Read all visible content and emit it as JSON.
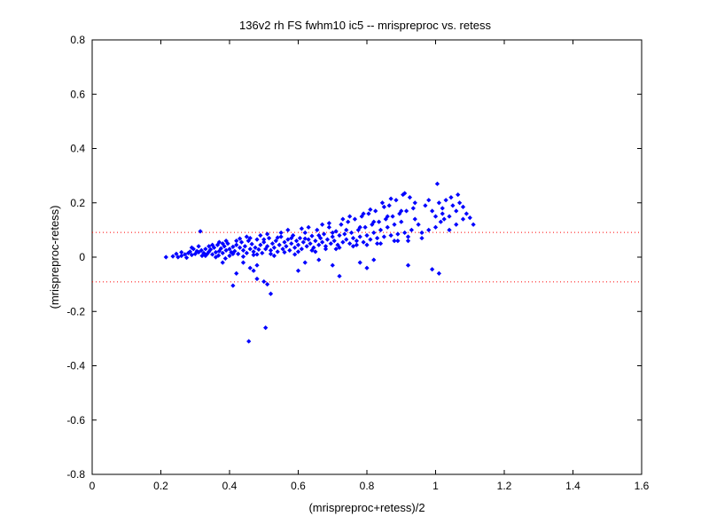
{
  "chart_data": {
    "type": "scatter",
    "title": "136v2 rh FS fwhm10 ic5 -- mrispreproc vs. retess",
    "xlabel": "(mrispreproc+retess)/2",
    "ylabel": "(mrispreproc-retess)",
    "xlim": [
      0,
      1.6
    ],
    "ylim": [
      -0.8,
      0.8
    ],
    "xticks": [
      "0",
      "0.2",
      "0.4",
      "0.6",
      "0.8",
      "1",
      "1.2",
      "1.4",
      "1.6"
    ],
    "yticks": [
      "-0.8",
      "-0.6",
      "-0.4",
      "-0.2",
      "0",
      "0.2",
      "0.4",
      "0.6",
      "0.8"
    ],
    "grid": false,
    "reference_lines": [
      {
        "y": 0.091,
        "style": "dotted",
        "color": "#ff0000"
      },
      {
        "y": -0.091,
        "style": "dotted",
        "color": "#ff0000"
      }
    ],
    "marker_color": "#0000ff",
    "series": [
      {
        "points": [
          [
            0.215,
            0.0
          ],
          [
            0.235,
            0.003
          ],
          [
            0.245,
            0.012
          ],
          [
            0.25,
            0.0
          ],
          [
            0.26,
            0.005
          ],
          [
            0.27,
            0.01
          ],
          [
            0.275,
            -0.002
          ],
          [
            0.28,
            0.015
          ],
          [
            0.285,
            0.02
          ],
          [
            0.29,
            0.008
          ],
          [
            0.295,
            0.03
          ],
          [
            0.3,
            0.012
          ],
          [
            0.305,
            0.022
          ],
          [
            0.31,
            0.018
          ],
          [
            0.315,
            0.095
          ],
          [
            0.318,
            0.025
          ],
          [
            0.32,
            0.005
          ],
          [
            0.325,
            0.015
          ],
          [
            0.33,
            0.03
          ],
          [
            0.335,
            0.012
          ],
          [
            0.34,
            0.02
          ],
          [
            0.345,
            0.028
          ],
          [
            0.35,
            0.01
          ],
          [
            0.355,
            0.035
          ],
          [
            0.36,
            0.018
          ],
          [
            0.365,
            0.045
          ],
          [
            0.368,
            0.006
          ],
          [
            0.37,
            0.022
          ],
          [
            0.375,
            0.032
          ],
          [
            0.38,
            0.015
          ],
          [
            0.385,
            0.04
          ],
          [
            0.388,
            -0.005
          ],
          [
            0.39,
            0.025
          ],
          [
            0.395,
            0.05
          ],
          [
            0.4,
            0.03
          ],
          [
            0.405,
            0.018
          ],
          [
            0.41,
            0.038
          ],
          [
            0.415,
            0.022
          ],
          [
            0.42,
            0.045
          ],
          [
            0.425,
            0.012
          ],
          [
            0.43,
            0.035
          ],
          [
            0.435,
            0.055
          ],
          [
            0.44,
            0.025
          ],
          [
            0.445,
            0.04
          ],
          [
            0.45,
            0.015
          ],
          [
            0.455,
            0.06
          ],
          [
            0.46,
            0.03
          ],
          [
            0.465,
            0.048
          ],
          [
            0.47,
            0.02
          ],
          [
            0.475,
            0.035
          ],
          [
            0.48,
            0.065
          ],
          [
            0.485,
            0.028
          ],
          [
            0.49,
            0.045
          ],
          [
            0.495,
            0.015
          ],
          [
            0.5,
            0.055
          ],
          [
            0.505,
            0.03
          ],
          [
            0.51,
            0.04
          ],
          [
            0.515,
            0.07
          ],
          [
            0.52,
            0.025
          ],
          [
            0.525,
            0.05
          ],
          [
            0.53,
            0.035
          ],
          [
            0.535,
            0.06
          ],
          [
            0.54,
            0.02
          ],
          [
            0.545,
            0.045
          ],
          [
            0.55,
            0.075
          ],
          [
            0.555,
            0.03
          ],
          [
            0.56,
            0.055
          ],
          [
            0.565,
            0.04
          ],
          [
            0.57,
            0.065
          ],
          [
            0.575,
            0.025
          ],
          [
            0.58,
            0.05
          ],
          [
            0.585,
            0.08
          ],
          [
            0.59,
            0.035
          ],
          [
            0.595,
            0.06
          ],
          [
            0.6,
            0.045
          ],
          [
            0.605,
            0.07
          ],
          [
            0.61,
            0.03
          ],
          [
            0.615,
            0.055
          ],
          [
            0.62,
            0.09
          ],
          [
            0.625,
            0.04
          ],
          [
            0.63,
            0.065
          ],
          [
            0.635,
            0.05
          ],
          [
            0.64,
            0.078
          ],
          [
            0.645,
            0.035
          ],
          [
            0.65,
            0.06
          ],
          [
            0.655,
            0.1
          ],
          [
            0.66,
            0.045
          ],
          [
            0.665,
            0.07
          ],
          [
            0.67,
            0.055
          ],
          [
            0.675,
            0.085
          ],
          [
            0.68,
            0.04
          ],
          [
            0.685,
            0.065
          ],
          [
            0.69,
            0.11
          ],
          [
            0.695,
            0.05
          ],
          [
            0.7,
            0.075
          ],
          [
            0.705,
            0.06
          ],
          [
            0.71,
            0.095
          ],
          [
            0.715,
            0.045
          ],
          [
            0.72,
            0.08
          ],
          [
            0.725,
            0.12
          ],
          [
            0.73,
            0.055
          ],
          [
            0.735,
            0.085
          ],
          [
            0.74,
            0.065
          ],
          [
            0.745,
            0.13
          ],
          [
            0.75,
            0.05
          ],
          [
            0.755,
            0.09
          ],
          [
            0.76,
            0.07
          ],
          [
            0.765,
            0.14
          ],
          [
            0.77,
            0.06
          ],
          [
            0.775,
            0.1
          ],
          [
            0.78,
            0.075
          ],
          [
            0.785,
            0.15
          ],
          [
            0.79,
            0.055
          ],
          [
            0.795,
            0.11
          ],
          [
            0.8,
            0.08
          ],
          [
            0.805,
            0.16
          ],
          [
            0.81,
            0.065
          ],
          [
            0.815,
            0.12
          ],
          [
            0.82,
            0.09
          ],
          [
            0.825,
            0.17
          ],
          [
            0.83,
            0.07
          ],
          [
            0.835,
            0.13
          ],
          [
            0.84,
            0.1
          ],
          [
            0.845,
            0.2
          ],
          [
            0.85,
            0.075
          ],
          [
            0.855,
            0.14
          ],
          [
            0.86,
            0.11
          ],
          [
            0.865,
            0.19
          ],
          [
            0.87,
            0.08
          ],
          [
            0.875,
            0.15
          ],
          [
            0.88,
            0.12
          ],
          [
            0.885,
            0.21
          ],
          [
            0.89,
            0.085
          ],
          [
            0.895,
            0.16
          ],
          [
            0.9,
            0.13
          ],
          [
            0.905,
            0.23
          ],
          [
            0.91,
            0.09
          ],
          [
            0.915,
            0.17
          ],
          [
            0.92,
            0.06
          ],
          [
            0.925,
            0.22
          ],
          [
            0.93,
            0.1
          ],
          [
            0.935,
            0.18
          ],
          [
            0.94,
            0.14
          ],
          [
            0.95,
            0.12
          ],
          [
            0.96,
            0.09
          ],
          [
            0.97,
            0.19
          ],
          [
            0.98,
            0.1
          ],
          [
            0.99,
            0.17
          ],
          [
            1.0,
            0.11
          ],
          [
            1.005,
            0.27
          ],
          [
            1.01,
            0.2
          ],
          [
            1.015,
            0.13
          ],
          [
            1.02,
            0.18
          ],
          [
            1.025,
            0.14
          ],
          [
            1.03,
            0.21
          ],
          [
            1.04,
            0.15
          ],
          [
            1.045,
            0.22
          ],
          [
            1.05,
            0.19
          ],
          [
            1.06,
            0.17
          ],
          [
            1.065,
            0.23
          ],
          [
            1.07,
            0.2
          ],
          [
            1.08,
            0.185
          ],
          [
            1.09,
            0.16
          ],
          [
            1.1,
            0.145
          ],
          [
            1.11,
            0.12
          ],
          [
            0.26,
            0.018
          ],
          [
            0.34,
            0.04
          ],
          [
            0.36,
            0.0
          ],
          [
            0.38,
            0.05
          ],
          [
            0.4,
            0.005
          ],
          [
            0.42,
            0.06
          ],
          [
            0.44,
            0.002
          ],
          [
            0.46,
            0.07
          ],
          [
            0.48,
            0.01
          ],
          [
            0.5,
            0.065
          ],
          [
            0.52,
            0.012
          ],
          [
            0.54,
            0.072
          ],
          [
            0.56,
            0.018
          ],
          [
            0.58,
            0.07
          ],
          [
            0.6,
            0.02
          ],
          [
            0.62,
            0.068
          ],
          [
            0.64,
            0.025
          ],
          [
            0.66,
            0.08
          ],
          [
            0.68,
            0.03
          ],
          [
            0.7,
            0.09
          ],
          [
            0.72,
            0.035
          ],
          [
            0.74,
            0.1
          ],
          [
            0.76,
            0.04
          ],
          [
            0.78,
            0.11
          ],
          [
            0.8,
            0.045
          ],
          [
            0.82,
            0.13
          ],
          [
            0.84,
            0.05
          ],
          [
            0.86,
            0.15
          ],
          [
            0.88,
            0.06
          ],
          [
            0.9,
            0.17
          ],
          [
            0.92,
            0.075
          ],
          [
            0.94,
            0.2
          ],
          [
            0.96,
            0.07
          ],
          [
            0.98,
            0.21
          ],
          [
            1.0,
            0.15
          ],
          [
            1.02,
            0.16
          ],
          [
            1.04,
            0.1
          ],
          [
            1.06,
            0.12
          ],
          [
            1.08,
            0.14
          ],
          [
            0.44,
            -0.02
          ],
          [
            0.46,
            -0.04
          ],
          [
            0.47,
            -0.05
          ],
          [
            0.48,
            -0.03
          ],
          [
            0.5,
            -0.09
          ],
          [
            0.51,
            -0.1
          ],
          [
            0.52,
            -0.135
          ],
          [
            0.48,
            -0.08
          ],
          [
            0.42,
            -0.06
          ],
          [
            0.41,
            -0.105
          ],
          [
            0.38,
            -0.02
          ],
          [
            0.62,
            -0.02
          ],
          [
            0.66,
            -0.01
          ],
          [
            0.72,
            -0.07
          ],
          [
            0.78,
            -0.02
          ],
          [
            0.8,
            -0.04
          ],
          [
            0.82,
            -0.01
          ],
          [
            0.92,
            -0.03
          ],
          [
            0.99,
            -0.045
          ],
          [
            1.01,
            -0.06
          ],
          [
            0.456,
            -0.31
          ],
          [
            0.505,
            -0.26
          ],
          [
            0.6,
            -0.05
          ],
          [
            0.7,
            -0.03
          ],
          [
            0.29,
            0.035
          ],
          [
            0.31,
            0.04
          ],
          [
            0.33,
            0.005
          ],
          [
            0.35,
            0.045
          ],
          [
            0.37,
            0.055
          ],
          [
            0.39,
            0.06
          ],
          [
            0.41,
            0.012
          ],
          [
            0.43,
            0.068
          ],
          [
            0.45,
            0.075
          ],
          [
            0.47,
            0.008
          ],
          [
            0.49,
            0.08
          ],
          [
            0.51,
            0.085
          ],
          [
            0.53,
            0.005
          ],
          [
            0.55,
            0.09
          ],
          [
            0.57,
            0.1
          ],
          [
            0.59,
            0.01
          ],
          [
            0.61,
            0.105
          ],
          [
            0.63,
            0.11
          ],
          [
            0.65,
            0.02
          ],
          [
            0.67,
            0.12
          ],
          [
            0.69,
            0.125
          ],
          [
            0.71,
            0.03
          ],
          [
            0.73,
            0.14
          ],
          [
            0.75,
            0.15
          ],
          [
            0.77,
            0.045
          ],
          [
            0.79,
            0.16
          ],
          [
            0.81,
            0.175
          ],
          [
            0.83,
            0.05
          ],
          [
            0.85,
            0.185
          ],
          [
            0.87,
            0.215
          ],
          [
            0.89,
            0.06
          ],
          [
            0.91,
            0.235
          ]
        ]
      }
    ]
  }
}
